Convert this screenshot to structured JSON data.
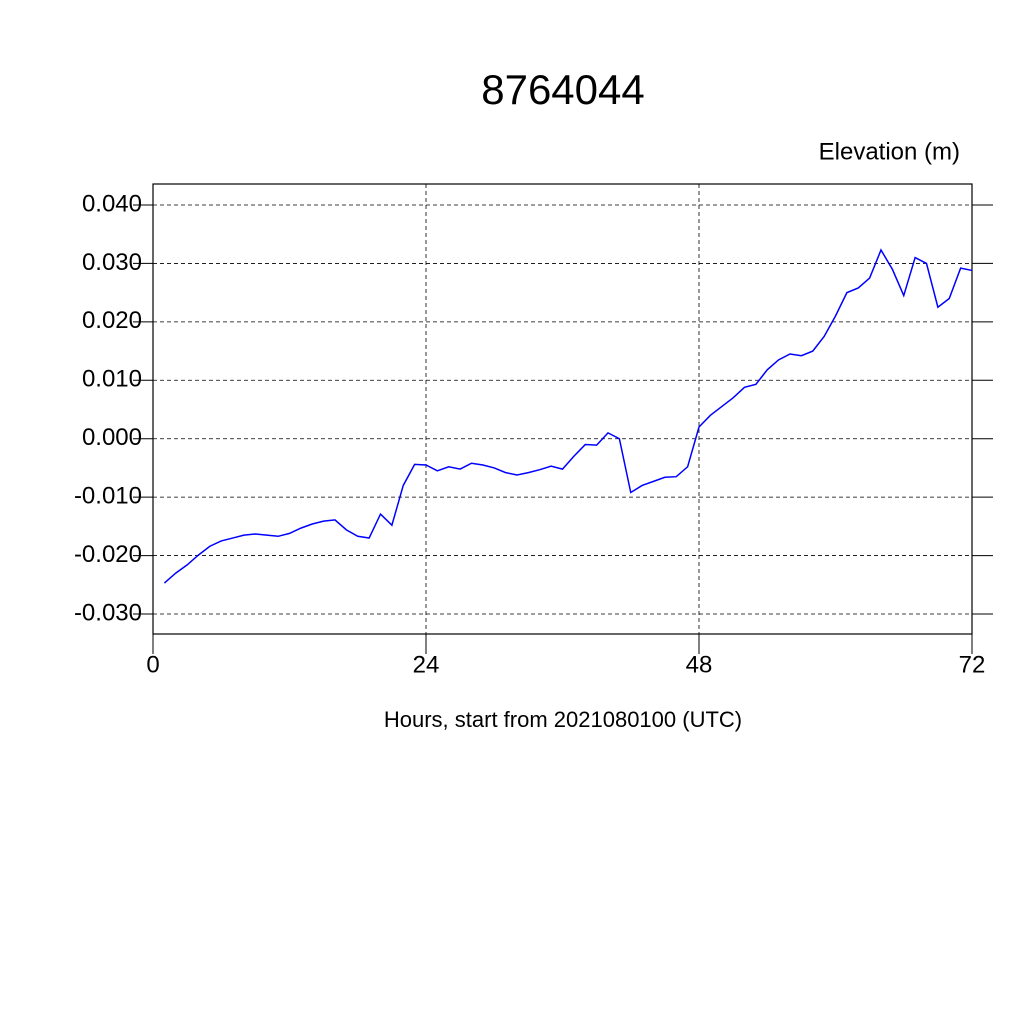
{
  "chart_data": {
    "type": "line",
    "title": "8764044",
    "subtitle": "Elevation (m)",
    "x_label": "Hours, start from 2021080100 (UTC)",
    "x": [
      1,
      2,
      3,
      4,
      5,
      6,
      7,
      8,
      9,
      10,
      11,
      12,
      13,
      14,
      15,
      16,
      17,
      18,
      19,
      20,
      21,
      22,
      23,
      24,
      25,
      26,
      27,
      28,
      29,
      30,
      31,
      32,
      33,
      34,
      35,
      36,
      37,
      38,
      39,
      40,
      41,
      42,
      43,
      44,
      45,
      46,
      47,
      48,
      49,
      50,
      51,
      52,
      53,
      54,
      55,
      56,
      57,
      58,
      59,
      60,
      61,
      62,
      63,
      64,
      65,
      66,
      67,
      68,
      69,
      70,
      71,
      72
    ],
    "values": [
      -0.0247,
      -0.023,
      -0.0216,
      -0.0199,
      -0.0184,
      -0.0175,
      -0.017,
      -0.0165,
      -0.0163,
      -0.0165,
      -0.0167,
      -0.0162,
      -0.0153,
      -0.0146,
      -0.0141,
      -0.0139,
      -0.0156,
      -0.0167,
      -0.017,
      -0.0129,
      -0.0148,
      -0.008,
      -0.0044,
      -0.0045,
      -0.0055,
      -0.0048,
      -0.0052,
      -0.0042,
      -0.0045,
      -0.005,
      -0.0058,
      -0.0062,
      -0.0058,
      -0.0053,
      -0.0047,
      -0.0052,
      -0.003,
      -0.001,
      -0.0011,
      0.001,
      0.0,
      -0.0092,
      -0.008,
      -0.0073,
      -0.0066,
      -0.0065,
      -0.0048,
      0.002,
      0.004,
      0.0055,
      0.007,
      0.0088,
      0.0093,
      0.0118,
      0.0135,
      0.0145,
      0.0142,
      0.015,
      0.0175,
      0.021,
      0.025,
      0.0258,
      0.0275,
      0.0323,
      0.029,
      0.0245,
      0.031,
      0.03,
      0.0225,
      0.024,
      0.0292,
      0.0288
    ],
    "color": "#0000ff",
    "xlim": [
      0,
      72
    ],
    "xticks": [
      0,
      24,
      48,
      72
    ],
    "ylim": [
      -0.03,
      0.04
    ],
    "yticks": [
      {
        "value": -0.03,
        "label": "-0.030"
      },
      {
        "value": -0.02,
        "label": "-0.020"
      },
      {
        "value": -0.01,
        "label": "-0.010"
      },
      {
        "value": 0,
        "label": "0.000"
      },
      {
        "value": 0.01,
        "label": "0.010"
      },
      {
        "value": 0.02,
        "label": "0.020"
      },
      {
        "value": 0.03,
        "label": "0.030"
      },
      {
        "value": 0.04,
        "label": "0.040"
      }
    ],
    "grid": true
  }
}
